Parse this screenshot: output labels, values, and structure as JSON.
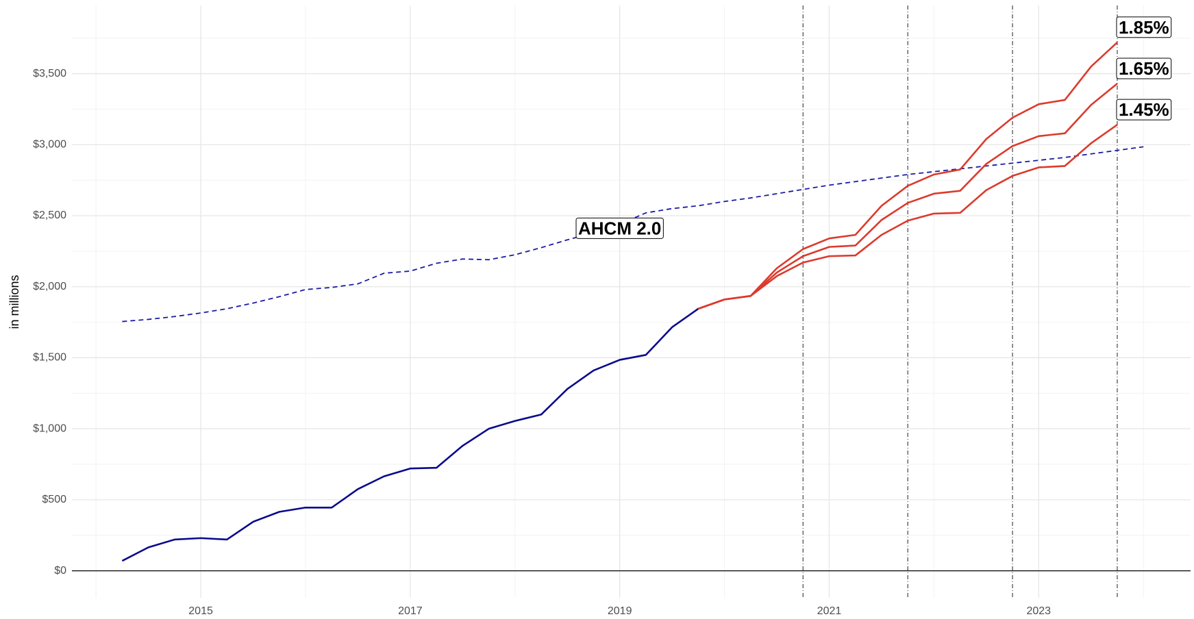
{
  "chart_data": {
    "type": "line",
    "y_axis_label": "in millions",
    "xlim": [
      2013.77,
      2024.45
    ],
    "ylim": [
      -190,
      3980
    ],
    "xticks": [
      2015,
      2017,
      2019,
      2021,
      2023
    ],
    "yticks": [
      {
        "value": 0,
        "label": "$0"
      },
      {
        "value": 500,
        "label": "$500"
      },
      {
        "value": 1000,
        "label": "$1,000"
      },
      {
        "value": 1500,
        "label": "$1,500"
      },
      {
        "value": 2000,
        "label": "$2,000"
      },
      {
        "value": 2500,
        "label": "$2,500"
      },
      {
        "value": 3000,
        "label": "$3,000"
      },
      {
        "value": 3500,
        "label": "$3,500"
      }
    ],
    "x_minor_grid": [
      2014,
      2016,
      2018,
      2020,
      2022,
      2024
    ],
    "y_minor_grid": [
      250,
      750,
      1250,
      1750,
      2250,
      2750,
      3250,
      3750
    ],
    "vlines": [
      2020.75,
      2021.75,
      2022.75,
      2023.75
    ],
    "grid": true,
    "series": [
      {
        "color": "#0a0a8c",
        "linestyle": "solid",
        "x": [
          2014.25,
          2014.5,
          2014.75,
          2015.0,
          2015.25,
          2015.5,
          2015.75,
          2016.0,
          2016.25,
          2016.5,
          2016.75,
          2017.0,
          2017.25,
          2017.5,
          2017.75,
          2018.0,
          2018.25,
          2018.5,
          2018.75,
          2019.0,
          2019.25,
          2019.5,
          2019.75
        ],
        "values": [
          70,
          165,
          220,
          230,
          220,
          345,
          415,
          445,
          445,
          575,
          665,
          720,
          725,
          880,
          1000,
          1055,
          1100,
          1280,
          1410,
          1485,
          1520,
          1715,
          1845
        ]
      },
      {
        "name": "AHCM 2.0",
        "color": "#1a1aa6",
        "linestyle": "dashed",
        "x": [
          2014.25,
          2014.5,
          2014.75,
          2015.0,
          2015.25,
          2015.5,
          2015.75,
          2016.0,
          2016.25,
          2016.5,
          2016.75,
          2017.0,
          2017.25,
          2017.5,
          2017.75,
          2018.0,
          2018.25,
          2018.5,
          2018.75,
          2019.0,
          2019.25,
          2019.5,
          2019.75,
          2020.0,
          2020.25,
          2020.5,
          2020.75,
          2021.0,
          2021.25,
          2021.5,
          2021.75,
          2022.0,
          2022.25,
          2022.5,
          2022.75,
          2023.0,
          2023.25,
          2023.5,
          2023.75,
          2024.0
        ],
        "values": [
          1755,
          1770,
          1790,
          1815,
          1845,
          1885,
          1930,
          1980,
          1995,
          2020,
          2095,
          2110,
          2165,
          2195,
          2190,
          2225,
          2275,
          2330,
          2380,
          2440,
          2520,
          2550,
          2570,
          2600,
          2625,
          2655,
          2685,
          2715,
          2740,
          2765,
          2790,
          2810,
          2830,
          2850,
          2870,
          2890,
          2910,
          2935,
          2960,
          2985
        ]
      },
      {
        "name": "1.85%",
        "color": "#dc3a2c",
        "linestyle": "solid",
        "x": [
          2019.75,
          2020.0,
          2020.25,
          2020.5,
          2020.75,
          2021.0,
          2021.25,
          2021.5,
          2021.75,
          2022.0,
          2022.25,
          2022.5,
          2022.75,
          2023.0,
          2023.25,
          2023.5,
          2023.75
        ],
        "values": [
          1845,
          1910,
          1935,
          2130,
          2265,
          2340,
          2365,
          2570,
          2710,
          2790,
          2825,
          3040,
          3190,
          3285,
          3315,
          3550,
          3720
        ]
      },
      {
        "name": "1.65%",
        "color": "#dc3a2c",
        "linestyle": "solid",
        "x": [
          2019.75,
          2020.0,
          2020.25,
          2020.5,
          2020.75,
          2021.0,
          2021.25,
          2021.5,
          2021.75,
          2022.0,
          2022.25,
          2022.5,
          2022.75,
          2023.0,
          2023.25,
          2023.5,
          2023.75
        ],
        "values": [
          1845,
          1910,
          1935,
          2100,
          2215,
          2280,
          2290,
          2470,
          2590,
          2655,
          2675,
          2865,
          2990,
          3060,
          3080,
          3280,
          3430
        ]
      },
      {
        "name": "1.45%",
        "color": "#dc3a2c",
        "linestyle": "solid",
        "x": [
          2019.75,
          2020.0,
          2020.25,
          2020.5,
          2020.75,
          2021.0,
          2021.25,
          2021.5,
          2021.75,
          2022.0,
          2022.25,
          2022.5,
          2022.75,
          2023.0,
          2023.25,
          2023.5,
          2023.75
        ],
        "values": [
          1845,
          1910,
          1935,
          2075,
          2170,
          2215,
          2220,
          2365,
          2465,
          2515,
          2520,
          2680,
          2780,
          2840,
          2850,
          3010,
          3140
        ]
      }
    ]
  }
}
